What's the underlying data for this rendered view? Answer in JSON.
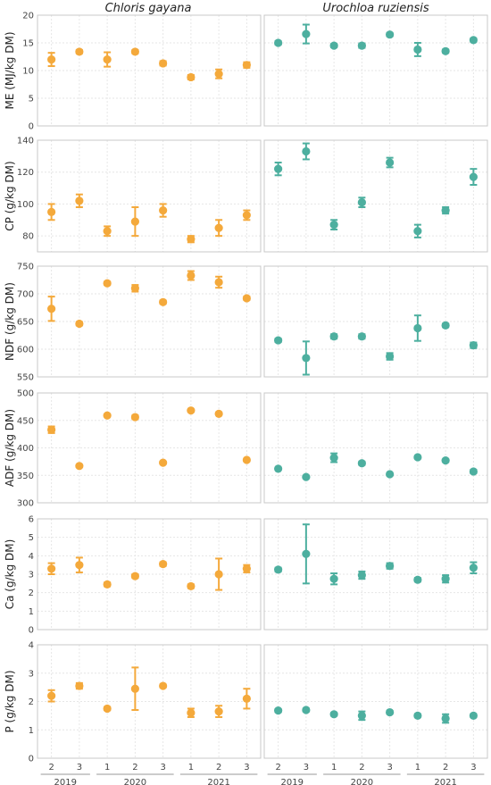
{
  "colors": {
    "Chloris gayana": "#F4A93B",
    "Urochloa ruziensis": "#4DAF9F"
  },
  "chart_data": {
    "type": "scatter",
    "error_bars": true,
    "facets": [
      "Chloris gayana",
      "Urochloa ruziensis"
    ],
    "x": {
      "levels": [
        "2",
        "3",
        "1",
        "2",
        "3",
        "1",
        "2",
        "3"
      ],
      "year_groups": [
        {
          "label": "2019",
          "from": 0,
          "to": 1
        },
        {
          "label": "2020",
          "from": 2,
          "to": 4
        },
        {
          "label": "2021",
          "from": 5,
          "to": 7
        }
      ]
    },
    "rows": [
      {
        "ylabel": "ME (MJ/kg DM)",
        "ylim": [
          0,
          20
        ],
        "yticks": [
          0,
          5,
          10,
          15,
          20
        ],
        "series": [
          {
            "name": "Chloris gayana",
            "values": [
              12.0,
              13.4,
              12.0,
              13.4,
              11.3,
              8.8,
              9.4,
              11.0
            ],
            "errors": [
              1.2,
              0.3,
              1.3,
              0.3,
              0.4,
              0.4,
              0.8,
              0.5
            ]
          },
          {
            "name": "Urochloa ruziensis",
            "values": [
              15.0,
              16.6,
              14.5,
              14.5,
              16.5,
              13.8,
              13.5,
              15.5
            ],
            "errors": [
              0.3,
              1.7,
              0.3,
              0.4,
              0.3,
              1.2,
              0.3,
              0.3
            ]
          }
        ]
      },
      {
        "ylabel": "CP (g/kg DM)",
        "ylim": [
          70,
          140
        ],
        "yticks": [
          80,
          100,
          120,
          140
        ],
        "series": [
          {
            "name": "Chloris gayana",
            "values": [
              95,
              102,
              83,
              89,
              96,
              78,
              85,
              93
            ],
            "errors": [
              5,
              4,
              3,
              9,
              4,
              2,
              5,
              3
            ]
          },
          {
            "name": "Urochloa ruziensis",
            "values": [
              122,
              133,
              87,
              101,
              126,
              83,
              96,
              117
            ],
            "errors": [
              4,
              5,
              3,
              3,
              3,
              4,
              2,
              5
            ]
          }
        ]
      },
      {
        "ylabel": "NDF (g/kg DM)",
        "ylim": [
          550,
          750
        ],
        "yticks": [
          550,
          600,
          650,
          700,
          750
        ],
        "series": [
          {
            "name": "Chloris gayana",
            "values": [
              673,
              646,
              719,
              710,
              685,
              733,
              721,
              692
            ],
            "errors": [
              22,
              3,
              3,
              6,
              3,
              8,
              10,
              3
            ]
          },
          {
            "name": "Urochloa ruziensis",
            "values": [
              616,
              584,
              623,
              623,
              587,
              638,
              643,
              607
            ],
            "errors": [
              3,
              30,
              4,
              4,
              6,
              23,
              3,
              5
            ]
          }
        ]
      },
      {
        "ylabel": "ADF (g/kg DM)",
        "ylim": [
          300,
          500
        ],
        "yticks": [
          300,
          350,
          400,
          450,
          500
        ],
        "series": [
          {
            "name": "Chloris gayana",
            "values": [
              433,
              367,
              459,
              456,
              373,
              468,
              462,
              378
            ],
            "errors": [
              6,
              2,
              2,
              3,
              2,
              2,
              2,
              2
            ]
          },
          {
            "name": "Urochloa ruziensis",
            "values": [
              362,
              347,
              382,
              372,
              352,
              383,
              377,
              357
            ],
            "errors": [
              2,
              2,
              8,
              3,
              2,
              2,
              2,
              3
            ]
          }
        ]
      },
      {
        "ylabel": "Ca (g/kg DM)",
        "ylim": [
          0,
          6
        ],
        "yticks": [
          0,
          1,
          2,
          3,
          4,
          5,
          6
        ],
        "series": [
          {
            "name": "Chloris gayana",
            "values": [
              3.3,
              3.5,
              2.45,
              2.9,
              3.55,
              2.35,
              3.0,
              3.3
            ],
            "errors": [
              0.3,
              0.4,
              0.1,
              0.1,
              0.1,
              0.1,
              0.85,
              0.2
            ]
          },
          {
            "name": "Urochloa ruziensis",
            "values": [
              3.25,
              4.1,
              2.75,
              2.95,
              3.45,
              2.7,
              2.75,
              3.35
            ],
            "errors": [
              0.1,
              1.6,
              0.3,
              0.2,
              0.15,
              0.1,
              0.2,
              0.3
            ]
          }
        ]
      },
      {
        "ylabel": "P (g/kg DM)",
        "ylim": [
          0,
          4
        ],
        "yticks": [
          0,
          1,
          2,
          3,
          4
        ],
        "series": [
          {
            "name": "Chloris gayana",
            "values": [
              2.2,
              2.55,
              1.75,
              2.45,
              2.55,
              1.6,
              1.65,
              2.1
            ],
            "errors": [
              0.2,
              0.1,
              0.05,
              0.75,
              0.05,
              0.15,
              0.2,
              0.35
            ]
          },
          {
            "name": "Urochloa ruziensis",
            "values": [
              1.68,
              1.7,
              1.55,
              1.5,
              1.62,
              1.5,
              1.4,
              1.5
            ],
            "errors": [
              0.05,
              0.05,
              0.05,
              0.15,
              0.05,
              0.05,
              0.15,
              0.05
            ]
          }
        ]
      }
    ]
  }
}
